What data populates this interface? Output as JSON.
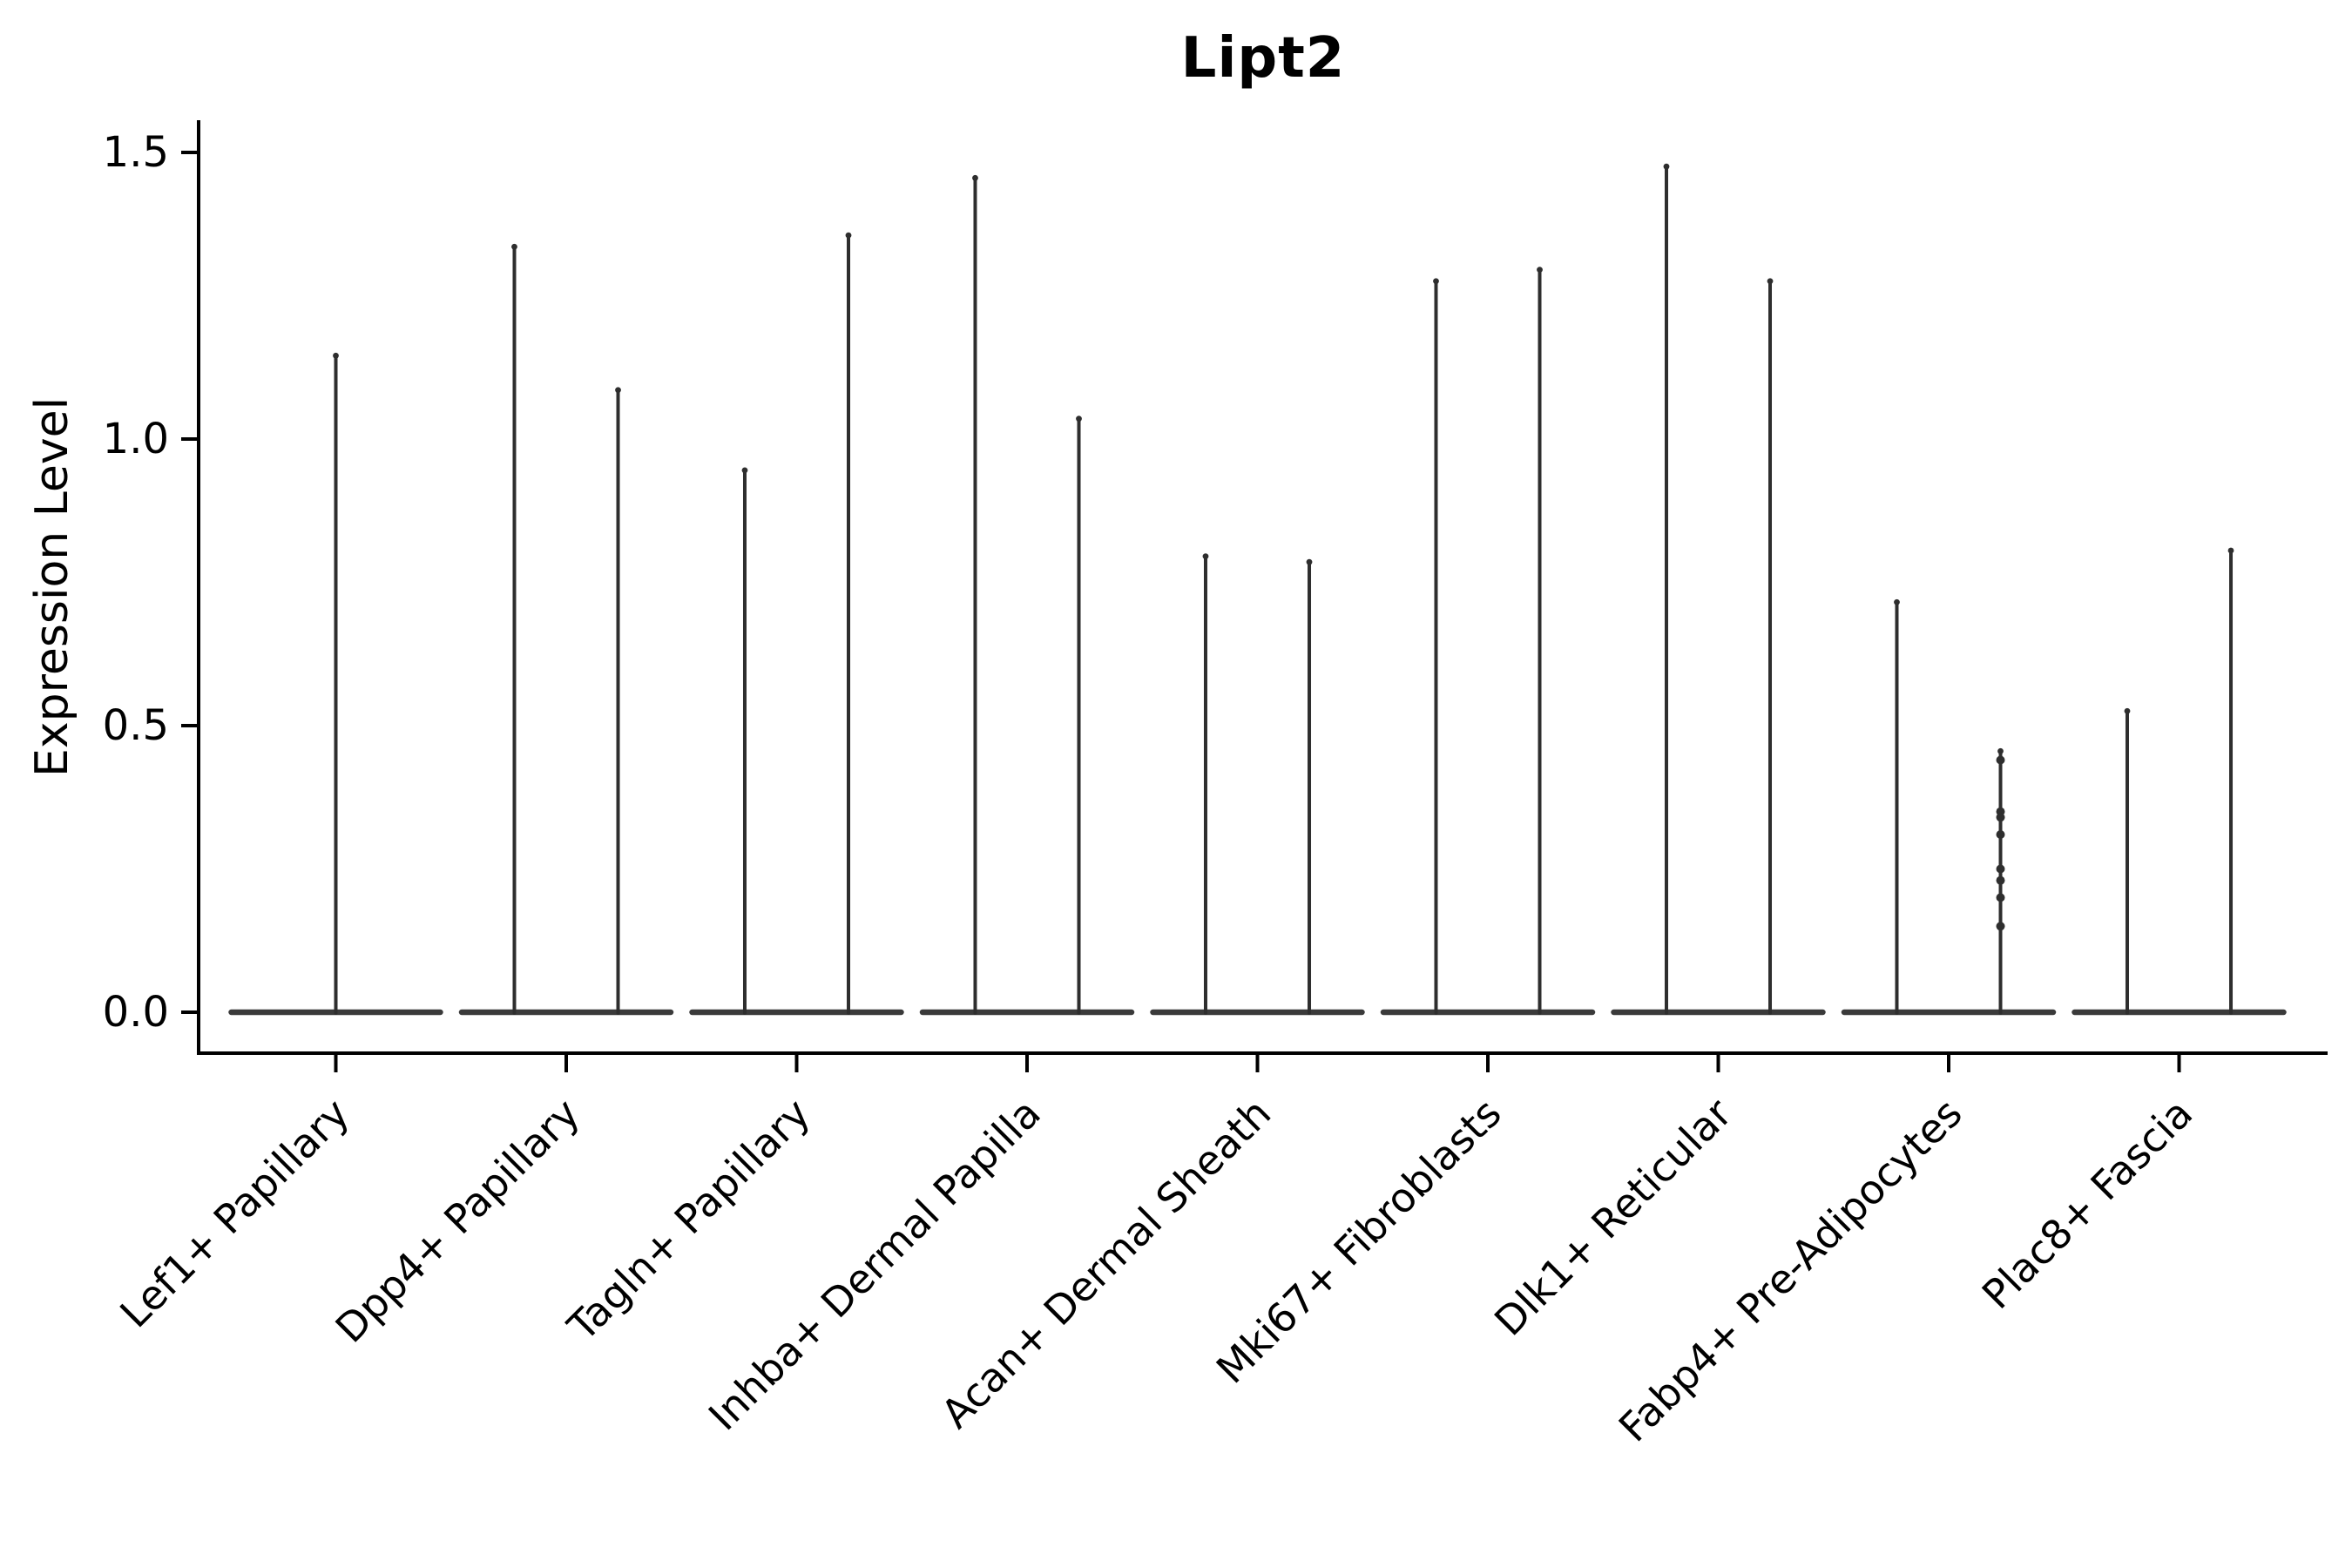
{
  "chart_data": {
    "type": "violin",
    "title": "Lipt2",
    "ylabel": "Expression Level",
    "xlabel": "",
    "grid": false,
    "legend": "none",
    "background": "#ffffff",
    "colors": {
      "violin_line": "#2e2e2e",
      "violin_base": "#3a3a3a",
      "axis": "#000000",
      "text": "#000000"
    },
    "y_axis": {
      "tick_labels": [
        "0.0",
        "0.5",
        "1.0",
        "1.5"
      ],
      "tick_values": [
        0.0,
        0.5,
        1.0,
        1.5
      ],
      "ylim": [
        -0.07,
        1.56
      ]
    },
    "categories": [
      "Lef1+ Papillary",
      "Dpp4+ Papillary",
      "Tagln+ Papillary",
      "Inhba+ Dermal Papilla",
      "Acan+ Dermal Sheath",
      "Mki67+ Fibroblasts",
      "Dlk1+ Reticular",
      "Fabp4+ Pre-Adipocytes",
      "Plac8+ Fascia"
    ],
    "violins": [
      {
        "category": "Lef1+ Papillary",
        "spikes": [
          {
            "offset": 0,
            "max": 1.15
          }
        ]
      },
      {
        "category": "Dpp4+ Papillary",
        "spikes": [
          {
            "offset": -0.225,
            "max": 1.34
          },
          {
            "offset": 0.225,
            "max": 1.09
          }
        ]
      },
      {
        "category": "Tagln+ Papillary",
        "spikes": [
          {
            "offset": -0.225,
            "max": 0.95
          },
          {
            "offset": 0.225,
            "max": 1.36
          }
        ]
      },
      {
        "category": "Inhba+ Dermal Papilla",
        "spikes": [
          {
            "offset": -0.225,
            "max": 1.46
          },
          {
            "offset": 0.225,
            "max": 1.04
          }
        ]
      },
      {
        "category": "Acan+ Dermal Sheath",
        "spikes": [
          {
            "offset": -0.225,
            "max": 0.8
          },
          {
            "offset": 0.225,
            "max": 0.79
          }
        ]
      },
      {
        "category": "Mki67+ Fibroblasts",
        "spikes": [
          {
            "offset": -0.225,
            "max": 1.28
          },
          {
            "offset": 0.225,
            "max": 1.3
          }
        ]
      },
      {
        "category": "Dlk1+ Reticular",
        "spikes": [
          {
            "offset": -0.225,
            "max": 1.48
          },
          {
            "offset": 0.225,
            "max": 1.28
          }
        ]
      },
      {
        "category": "Fabp4+ Pre-Adipocytes",
        "spikes": [
          {
            "offset": -0.225,
            "max": 0.72
          },
          {
            "offset": 0.225,
            "max": 0.46
          }
        ]
      },
      {
        "category": "Plac8+ Fascia",
        "spikes": [
          {
            "offset": -0.225,
            "max": 0.53
          },
          {
            "offset": 0.225,
            "max": 0.81
          }
        ]
      }
    ],
    "jitter_points": [
      {
        "category": "Fabp4+ Pre-Adipocytes",
        "offset": 0.225,
        "values": [
          0.44,
          0.35,
          0.34,
          0.31,
          0.25,
          0.23,
          0.2,
          0.15
        ]
      }
    ]
  }
}
